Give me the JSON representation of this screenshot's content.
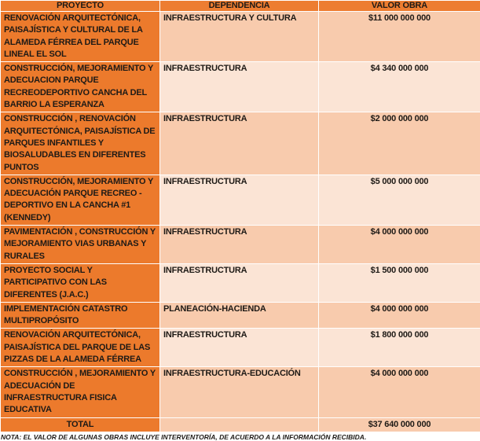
{
  "headers": [
    "PROYECTO",
    "DEPENDENCIA",
    "VALOR OBRA"
  ],
  "rows": [
    {
      "proyecto": "RENOVACIÓN ARQUITECTÓNICA, PAISAJÍSTICA Y CULTURAL DE LA ALAMEDA FÉRREA DEL PARQUE LINEAL EL SOL",
      "dependencia": "INFRAESTRUCTURA Y CULTURA",
      "valor": "$11 000 000 000"
    },
    {
      "proyecto": "CONSTRUCCIÓN, MEJORAMIENTO Y ADECUACION  PARQUE RECREODEPORTIVO CANCHA DEL BARRIO LA ESPERANZA",
      "dependencia": "INFRAESTRUCTURA",
      "valor": "$4 340 000 000"
    },
    {
      "proyecto": "CONSTRUCCIÓN , RENOVACIÓN ARQUITECTÓNICA, PAISAJÍSTICA DE PARQUES INFANTILES Y BIOSALUDABLES EN DIFERENTES PUNTOS",
      "dependencia": "INFRAESTRUCTURA",
      "valor": "$2 000 000 000"
    },
    {
      "proyecto": "CONSTRUCCIÓN, MEJORAMIENTO Y ADECUACIÓN  PARQUE RECREO - DEPORTIVO EN LA CANCHA #1 (KENNEDY)",
      "dependencia": "INFRAESTRUCTURA",
      "valor": "$5 000 000 000"
    },
    {
      "proyecto": "PAVIMENTACIÓN , CONSTRUCCIÓN Y  MEJORAMIENTO VIAS URBANAS Y RURALES",
      "dependencia": "INFRAESTRUCTURA",
      "valor": "$4 000 000 000"
    },
    {
      "proyecto": "PROYECTO SOCIAL Y PARTICIPATIVO CON LAS DIFERENTES (J.A.C.)",
      "dependencia": "INFRAESTRUCTURA",
      "valor": "$1 500 000 000"
    },
    {
      "proyecto": "IMPLEMENTACIÓN CATASTRO MULTIPROPÓSITO",
      "dependencia": "PLANEACIÓN-HACIENDA",
      "valor": "$4 000 000 000"
    },
    {
      "proyecto": "RENOVACIÓN ARQUITECTÓNICA, PAISAJÍSTICA DEL PARQUE DE LAS PIZZAS  DE LA ALAMEDA FÉRREA",
      "dependencia": "INFRAESTRUCTURA",
      "valor": "$1 800 000 000"
    },
    {
      "proyecto": "CONSTRUCCIÓN , MEJORAMIENTO Y ADECUACIÓN DE INFRAESTRUCTURA FISICA EDUCATIVA",
      "dependencia": "INFRAESTRUCTURA-EDUCACIÓN",
      "valor": "$4 000 000 000"
    }
  ],
  "total": {
    "label": "TOTAL",
    "valor": "$37 640 000 000"
  },
  "note": "NOTA: EL VALOR DE ALGUNAS OBRAS INCLUYE INTERVENTORÍA, DE ACUERDO A LA INFORMACIÓN RECIBIDA.",
  "colors": {
    "header": "#ed7d31",
    "project_col": "#ec7a2c",
    "row_dark": "#f8cbad",
    "row_light": "#fbe4d5"
  }
}
